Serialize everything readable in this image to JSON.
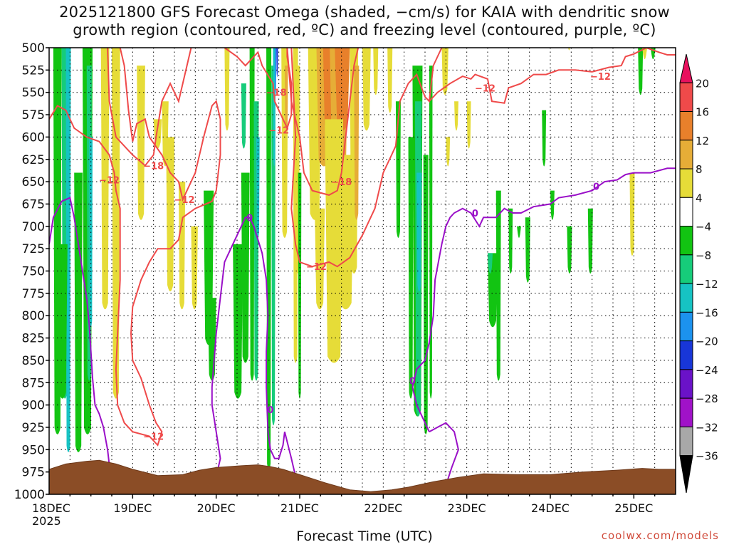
{
  "chart_data": {
    "type": "heatmap",
    "title_line1": "2025121800 GFS Forecast Omega (shaded, −cm/s) for KAIA with dendritic snow",
    "title_line2": "growth region (contoured, red, ºC) and freezing level (contoured, purple, ºC)",
    "xlabel": "Forecast Time (UTC)",
    "credit": "coolwx.com/models",
    "x_ticks": [
      {
        "label": "18DEC",
        "sub": "2025",
        "day": 0
      },
      {
        "label": "19DEC",
        "day": 1
      },
      {
        "label": "20DEC",
        "day": 2
      },
      {
        "label": "21DEC",
        "day": 3
      },
      {
        "label": "22DEC",
        "day": 4
      },
      {
        "label": "23DEC",
        "day": 5
      },
      {
        "label": "24DEC",
        "day": 6
      },
      {
        "label": "25DEC",
        "day": 7
      }
    ],
    "xlim_days": [
      0,
      7.5
    ],
    "y_ticks": [
      "500",
      "525",
      "550",
      "575",
      "600",
      "625",
      "650",
      "675",
      "700",
      "725",
      "750",
      "775",
      "800",
      "825",
      "850",
      "875",
      "900",
      "925",
      "950",
      "975",
      "1000"
    ],
    "ylim_hpa": [
      1000,
      500
    ],
    "grid": "dotted",
    "colorbar": {
      "labels": [
        "20",
        "16",
        "12",
        "8",
        "4",
        "−4",
        "−8",
        "−12",
        "−16",
        "−20",
        "−24",
        "−28",
        "−32",
        "−36"
      ],
      "colors": [
        "#e8115e",
        "#ef4a4a",
        "#e8802b",
        "#e6ad37",
        "#e6dc38",
        "#ffffff",
        "#12c412",
        "#16cc7a",
        "#16c3c3",
        "#1c92ee",
        "#1836d8",
        "#6a12c8",
        "#a012c8",
        "#a8a8a8",
        "#000000"
      ]
    },
    "contour_labels_red": [
      "−18",
      "−12",
      "−12",
      "−18",
      "−12",
      "−18",
      "−12",
      "−12",
      "−12",
      "−12",
      "−12"
    ],
    "contour_labels_purple": [
      "0",
      "0",
      "0",
      "0",
      "0"
    ],
    "terrain_color": "#8b4d26",
    "red_contour_color": "#ef4a4a",
    "purple_contour_color": "#9a10c8"
  }
}
